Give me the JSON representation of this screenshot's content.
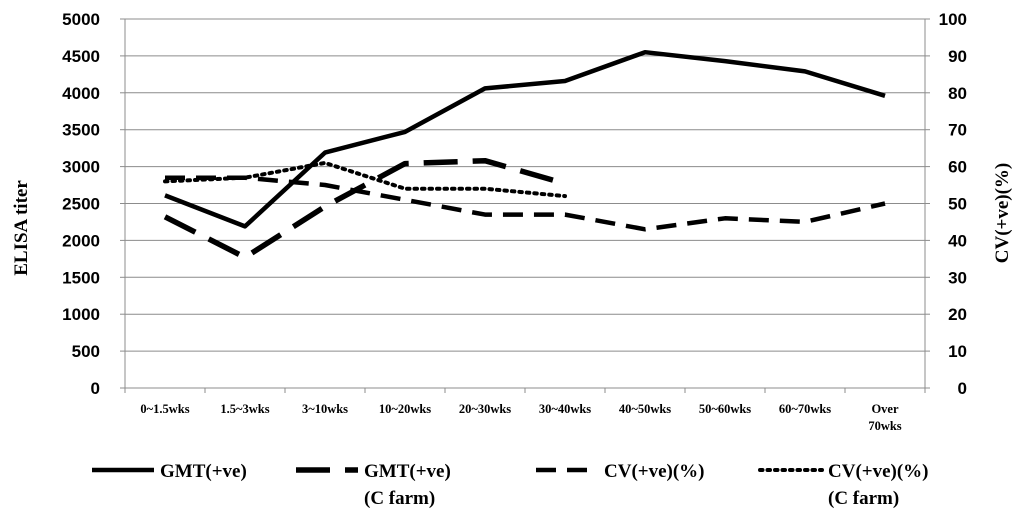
{
  "chart_data": {
    "type": "line",
    "categories": [
      "0~1.5wks",
      "1.5~3wks",
      "3~10wks",
      "10~20wks",
      "20~30wks",
      "30~40wks",
      "40~50wks",
      "50~60wks",
      "60~70wks",
      "Over 70wks"
    ],
    "ylabel": "ELISA titer",
    "y2label": "CV(+ve)(%)",
    "ylim": [
      0,
      5000
    ],
    "y2lim": [
      0,
      100
    ],
    "yticks": [
      0,
      500,
      1000,
      1500,
      2000,
      2500,
      3000,
      3500,
      4000,
      4500,
      5000
    ],
    "y2ticks": [
      0,
      10,
      20,
      30,
      40,
      50,
      60,
      70,
      80,
      90,
      100
    ],
    "grid": "horizontal",
    "legend_position": "bottom",
    "series": [
      {
        "name": "GMT(+ve)",
        "axis": "left",
        "style": "solid",
        "values": [
          2610,
          2190,
          3190,
          3470,
          4060,
          4160,
          4550,
          4430,
          4290,
          3960
        ]
      },
      {
        "name": "GMT(+ve) (C farm)",
        "axis": "left",
        "style": "long-dash",
        "values": [
          2320,
          1770,
          2460,
          3040,
          3080,
          2770,
          null,
          null,
          null,
          null
        ]
      },
      {
        "name": "CV(+ve)(%)",
        "axis": "right",
        "style": "dash",
        "values": [
          57,
          57,
          55,
          51,
          47,
          47,
          43,
          46,
          45,
          50
        ]
      },
      {
        "name": "CV(+ve)(%) (C farm)",
        "axis": "right",
        "style": "dot",
        "values": [
          56,
          57,
          61,
          54,
          54,
          52,
          null,
          null,
          null,
          null
        ]
      }
    ]
  },
  "legend": [
    {
      "line1": "GMT(+ve)",
      "line2": ""
    },
    {
      "line1": "GMT(+ve)",
      "line2": "(C farm)"
    },
    {
      "line1": "CV(+ve)(%)",
      "line2": ""
    },
    {
      "line1": "CV(+ve)(%)",
      "line2": "(C farm)"
    }
  ]
}
